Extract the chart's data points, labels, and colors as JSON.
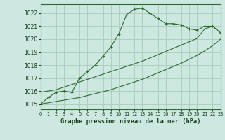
{
  "title": "Graphe pression niveau de la mer (hPa)",
  "bg_color": "#cce8e0",
  "grid_color": "#aaccbb",
  "line_color": "#2d6a2d",
  "xlim": [
    0,
    23
  ],
  "ylim": [
    1014.6,
    1022.7
  ],
  "yticks": [
    1015,
    1016,
    1017,
    1018,
    1019,
    1020,
    1021,
    1022
  ],
  "xticks": [
    0,
    1,
    2,
    3,
    4,
    5,
    6,
    7,
    8,
    9,
    10,
    11,
    12,
    13,
    14,
    15,
    16,
    17,
    18,
    19,
    20,
    21,
    22,
    23
  ],
  "series1": [
    1015.0,
    1015.5,
    1015.9,
    1016.0,
    1015.9,
    1017.0,
    1017.5,
    1018.0,
    1018.7,
    1019.4,
    1020.4,
    1021.9,
    1022.3,
    1022.4,
    1022.0,
    1021.6,
    1021.2,
    1021.2,
    1021.1,
    1020.8,
    1020.7,
    1021.0,
    1021.0,
    1020.5
  ],
  "series2": [
    1015.0,
    1015.1,
    1015.2,
    1015.3,
    1015.4,
    1015.5,
    1015.65,
    1015.8,
    1015.95,
    1016.1,
    1016.3,
    1016.5,
    1016.7,
    1016.9,
    1017.15,
    1017.4,
    1017.65,
    1017.9,
    1018.15,
    1018.45,
    1018.75,
    1019.1,
    1019.5,
    1020.0
  ],
  "series3": [
    1015.9,
    1016.0,
    1016.1,
    1016.3,
    1016.5,
    1016.7,
    1016.9,
    1017.1,
    1017.3,
    1017.5,
    1017.7,
    1017.9,
    1018.1,
    1018.3,
    1018.55,
    1018.8,
    1019.05,
    1019.3,
    1019.55,
    1019.8,
    1020.05,
    1020.8,
    1021.0,
    1020.5
  ]
}
